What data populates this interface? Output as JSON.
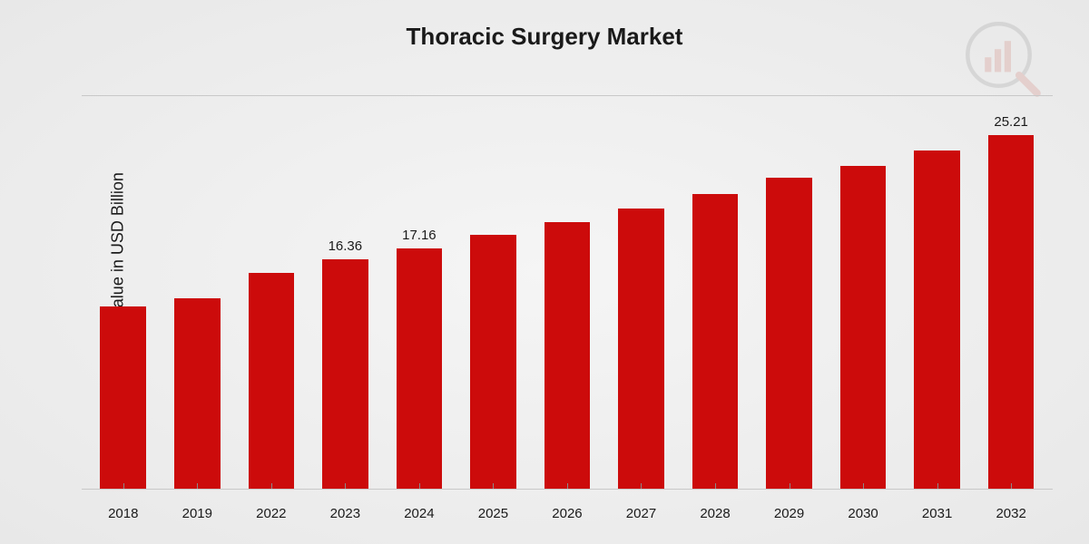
{
  "chart": {
    "type": "bar",
    "title": "Thoracic Surgery Market",
    "ylabel": "Market Value in USD Billion",
    "background_gradient": [
      "#f5f5f5",
      "#e8e8e8"
    ],
    "bar_color": "#cc0b0b",
    "text_color": "#1a1a1a",
    "axis_color": "#c8c8c8",
    "title_fontsize": 26,
    "ylabel_fontsize": 18,
    "xtick_fontsize": 15,
    "data_label_fontsize": 15,
    "ylim": [
      0,
      28
    ],
    "bar_width_ratio": 0.62,
    "categories": [
      "2018",
      "2019",
      "2022",
      "2023",
      "2024",
      "2025",
      "2026",
      "2027",
      "2028",
      "2029",
      "2030",
      "2031",
      "2032"
    ],
    "values": [
      13.0,
      13.6,
      15.4,
      16.36,
      17.16,
      18.1,
      19.0,
      20.0,
      21.0,
      22.2,
      23.0,
      24.1,
      25.21
    ],
    "data_labels": [
      null,
      null,
      null,
      "16.36",
      "17.16",
      null,
      null,
      null,
      null,
      null,
      null,
      null,
      "25.21"
    ],
    "watermark": {
      "opacity": 0.15,
      "bar_color": "#c0392b",
      "circle_color": "#666666",
      "handle_color": "#c0392b"
    }
  }
}
